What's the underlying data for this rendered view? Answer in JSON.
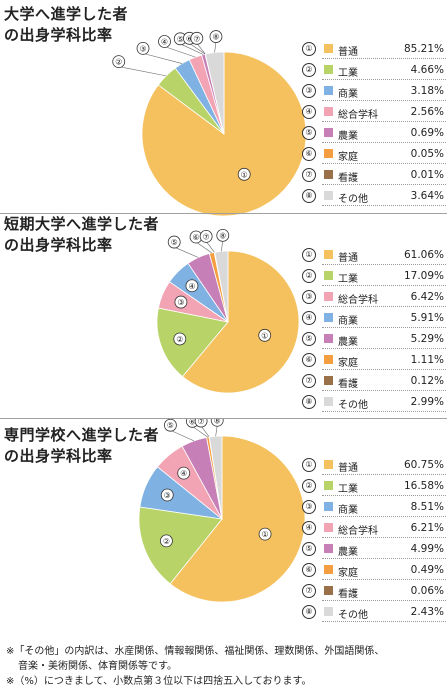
{
  "colors": {
    "普通": "#f5c15e",
    "工業": "#b8d468",
    "商業": "#7fb2e2",
    "総合学科": "#f3a4b4",
    "農業": "#c77fb7",
    "家庭": "#f49e41",
    "看護": "#9a7049",
    "その他": "#d9d9d9"
  },
  "chart_data": [
    {
      "type": "pie",
      "title": "大学へ進学した者\nの出身学科比率",
      "slices": [
        {
          "no": "①",
          "label": "普通",
          "value": 85.21,
          "display": "85.21%"
        },
        {
          "no": "②",
          "label": "工業",
          "value": 4.66,
          "display": "4.66%"
        },
        {
          "no": "③",
          "label": "商業",
          "value": 3.18,
          "display": "3.18%"
        },
        {
          "no": "④",
          "label": "総合学科",
          "value": 2.56,
          "display": "2.56%"
        },
        {
          "no": "⑤",
          "label": "農業",
          "value": 0.69,
          "display": "0.69%"
        },
        {
          "no": "⑥",
          "label": "家庭",
          "value": 0.05,
          "display": "0.05%"
        },
        {
          "no": "⑦",
          "label": "看護",
          "value": 0.01,
          "display": "0.01%"
        },
        {
          "no": "⑧",
          "label": "その他",
          "value": 3.64,
          "display": "3.64%"
        }
      ]
    },
    {
      "type": "pie",
      "title": "短期大学へ進学した者\nの出身学科比率",
      "slices": [
        {
          "no": "①",
          "label": "普通",
          "value": 61.06,
          "display": "61.06%"
        },
        {
          "no": "②",
          "label": "工業",
          "value": 17.09,
          "display": "17.09%"
        },
        {
          "no": "③",
          "label": "総合学科",
          "value": 6.42,
          "display": "6.42%"
        },
        {
          "no": "④",
          "label": "商業",
          "value": 5.91,
          "display": "5.91%"
        },
        {
          "no": "⑤",
          "label": "農業",
          "value": 5.29,
          "display": "5.29%"
        },
        {
          "no": "⑥",
          "label": "家庭",
          "value": 1.11,
          "display": "1.11%"
        },
        {
          "no": "⑦",
          "label": "看護",
          "value": 0.12,
          "display": "0.12%"
        },
        {
          "no": "⑧",
          "label": "その他",
          "value": 2.99,
          "display": "2.99%"
        }
      ]
    },
    {
      "type": "pie",
      "title": "専門学校へ進学した者\nの出身学科比率",
      "slices": [
        {
          "no": "①",
          "label": "普通",
          "value": 60.75,
          "display": "60.75%"
        },
        {
          "no": "②",
          "label": "工業",
          "value": 16.58,
          "display": "16.58%"
        },
        {
          "no": "③",
          "label": "商業",
          "value": 8.51,
          "display": "8.51%"
        },
        {
          "no": "④",
          "label": "総合学科",
          "value": 6.21,
          "display": "6.21%"
        },
        {
          "no": "⑤",
          "label": "農業",
          "value": 4.99,
          "display": "4.99%"
        },
        {
          "no": "⑥",
          "label": "家庭",
          "value": 0.49,
          "display": "0.49%"
        },
        {
          "no": "⑦",
          "label": "看護",
          "value": 0.06,
          "display": "0.06%"
        },
        {
          "no": "⑧",
          "label": "その他",
          "value": 2.43,
          "display": "2.43%"
        }
      ]
    }
  ],
  "notes": {
    "line1": "※「その他」の内訳は、水産関係、情報報関係、福祉関係、理数関係、外国語関係、",
    "line2": "音楽・美術関係、体育関係等です。",
    "line3": "※（%）につきまして、小数点第３位以下は四捨五入しております。"
  }
}
